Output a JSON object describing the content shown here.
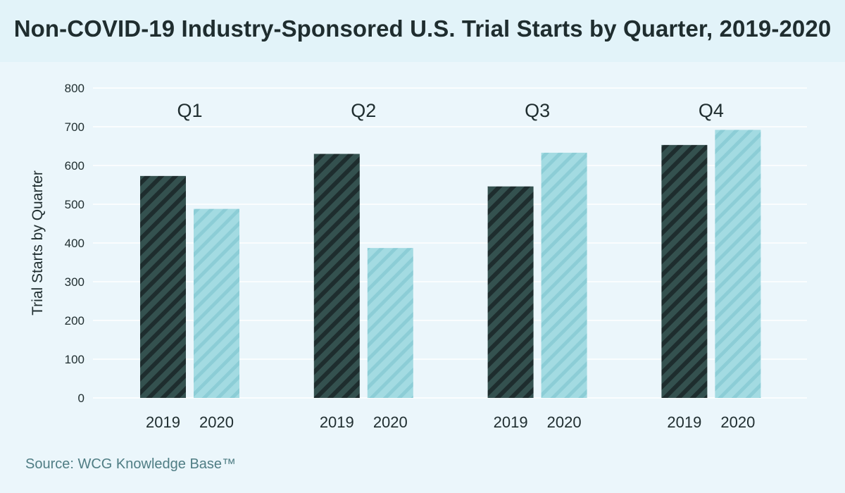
{
  "title": "Non-COVID-19 Industry-Sponsored U.S. Trial Starts by Quarter, 2019-2020",
  "source": "Source: WCG Knowledge Base™",
  "colors": {
    "background": "#ebf6fb",
    "title_band": "#e2f3f9",
    "series_2019": "#34514f",
    "series_2019_stripe": "#1e2d2e",
    "series_2020": "#a3dbe2",
    "series_2020_stripe": "#8ccdd6",
    "gridline": "#ffffff",
    "axis_text": "#1f2d2f"
  },
  "chart_data": {
    "type": "bar",
    "title": "Non-COVID-19 Industry-Sponsored U.S. Trial Starts by Quarter, 2019-2020",
    "xlabel": "",
    "ylabel": "Trial Starts by Quarter",
    "ylim": [
      0,
      800
    ],
    "yticks": [
      0,
      100,
      200,
      300,
      400,
      500,
      600,
      700,
      800
    ],
    "grid": true,
    "categories": [
      "Q1",
      "Q2",
      "Q3",
      "Q4"
    ],
    "series": [
      {
        "name": "2019",
        "pattern": "dark-diagonal-stripes",
        "values": [
          573,
          630,
          546,
          653
        ]
      },
      {
        "name": "2020",
        "pattern": "light-diagonal-stripes",
        "values": [
          488,
          387,
          633,
          692
        ]
      }
    ]
  }
}
